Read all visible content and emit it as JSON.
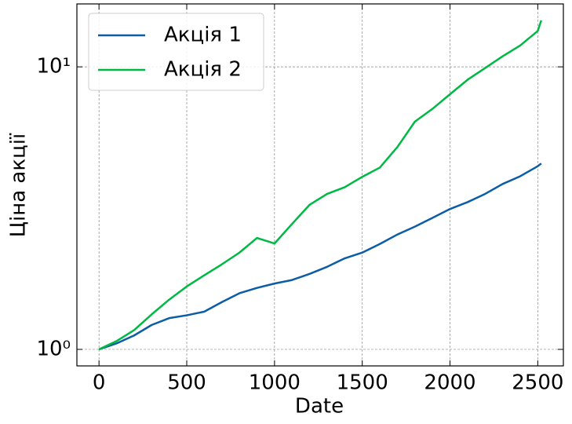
{
  "chart_data": {
    "type": "line",
    "x_label": "Date",
    "y_label": "Ціна акції",
    "x": [
      0,
      100,
      200,
      300,
      400,
      500,
      600,
      700,
      800,
      900,
      1000,
      1100,
      1200,
      1300,
      1400,
      1500,
      1600,
      1700,
      1800,
      1900,
      2000,
      2100,
      2200,
      2300,
      2400,
      2500,
      2520
    ],
    "series": [
      {
        "name": "Акція 1",
        "color": "#0c5da5",
        "values": [
          1.0,
          1.05,
          1.12,
          1.22,
          1.29,
          1.32,
          1.36,
          1.47,
          1.58,
          1.65,
          1.71,
          1.76,
          1.85,
          1.96,
          2.1,
          2.2,
          2.36,
          2.55,
          2.72,
          2.92,
          3.14,
          3.32,
          3.55,
          3.85,
          4.1,
          4.45,
          4.55
        ]
      },
      {
        "name": "Акція 2",
        "color": "#00b945",
        "values": [
          1.0,
          1.07,
          1.17,
          1.33,
          1.5,
          1.67,
          1.83,
          2.0,
          2.2,
          2.48,
          2.37,
          2.78,
          3.25,
          3.55,
          3.75,
          4.08,
          4.4,
          5.2,
          6.4,
          7.1,
          8.0,
          9.0,
          9.9,
          10.9,
          11.9,
          13.4,
          14.6
        ]
      }
    ],
    "xlim": [
      -126,
      2646
    ],
    "ylim": [
      0.874,
      16.7
    ],
    "xticks": [
      0,
      500,
      1000,
      1500,
      2000,
      2500
    ],
    "yticks": [
      {
        "value": 1,
        "label": "10⁰"
      },
      {
        "value": 10,
        "label": "10¹"
      }
    ],
    "y_scale": "log",
    "grid": true,
    "legend": "upper left"
  }
}
